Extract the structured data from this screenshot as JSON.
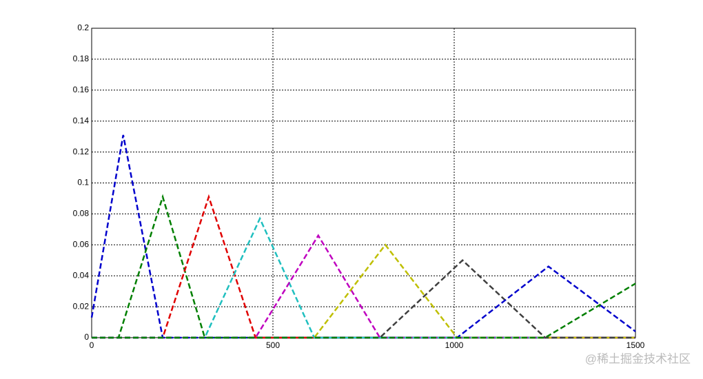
{
  "chart_data": {
    "type": "line",
    "xlim": [
      0,
      1500
    ],
    "xticks": [
      0,
      500,
      1000,
      1500
    ],
    "ylim": [
      0,
      0.2
    ],
    "yticks": [
      0,
      0.02,
      0.04,
      0.06,
      0.08,
      0.1,
      0.12,
      0.14,
      0.16,
      0.18,
      0.2
    ],
    "grid": true,
    "line_style": "dashed",
    "series": [
      {
        "color": "#0000cc",
        "x": [
          0,
          87,
          196,
          1500
        ],
        "values": [
          0.013,
          0.131,
          0,
          0
        ]
      },
      {
        "color": "#007f00",
        "x": [
          0,
          74,
          196,
          312,
          1500
        ],
        "values": [
          0,
          0,
          0.091,
          0,
          0
        ]
      },
      {
        "color": "#e00000",
        "x": [
          0,
          196,
          323,
          452,
          1500
        ],
        "values": [
          0,
          0,
          0.091,
          0,
          0
        ]
      },
      {
        "color": "#1fbfbf",
        "x": [
          0,
          312,
          464,
          614,
          1500
        ],
        "values": [
          0,
          0,
          0.077,
          0,
          0
        ]
      },
      {
        "color": "#bf00bf",
        "x": [
          0,
          452,
          625,
          795,
          1500
        ],
        "values": [
          0,
          0,
          0.066,
          0,
          0
        ]
      },
      {
        "color": "#bfbf00",
        "x": [
          0,
          614,
          810,
          1008,
          1500
        ],
        "values": [
          0,
          0,
          0.06,
          0,
          0
        ]
      },
      {
        "color": "#3f3f3f",
        "x": [
          0,
          795,
          1023,
          1251,
          1500
        ],
        "values": [
          0,
          0,
          0.05,
          0,
          0
        ]
      },
      {
        "color": "#0000cc",
        "x": [
          0,
          1008,
          1260,
          1500
        ],
        "values": [
          0,
          0,
          0.046,
          0.004
        ]
      },
      {
        "color": "#007f00",
        "x": [
          0,
          1251,
          1500
        ],
        "values": [
          0,
          0,
          0.035
        ]
      }
    ],
    "watermark": "@稀土掘金技术社区"
  }
}
